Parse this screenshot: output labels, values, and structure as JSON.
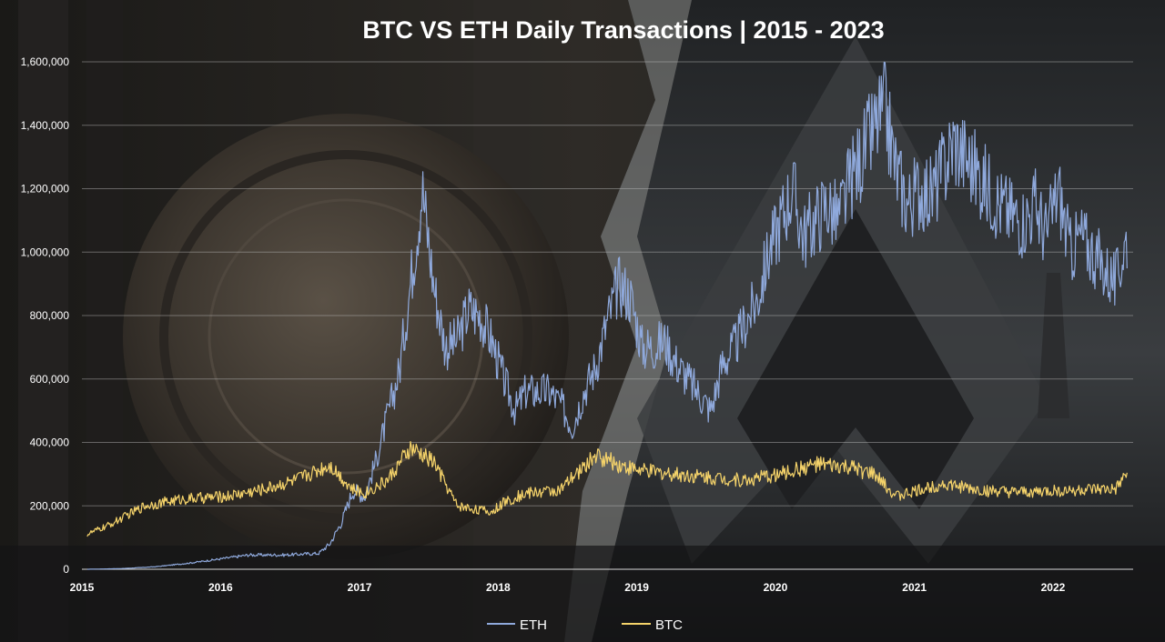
{
  "chart_data": {
    "type": "line",
    "title": "BTC VS ETH Daily Transactions | 2015 - 2023",
    "xlabel": "",
    "ylabel": "",
    "x_tick_labels": [
      "2015",
      "2016",
      "2017",
      "2018",
      "2019",
      "2020",
      "2021",
      "2022"
    ],
    "y_tick_labels": [
      "0",
      "200,000",
      "400,000",
      "600,000",
      "800,000",
      "1,000,000",
      "1,200,000",
      "1,400,000",
      "1,600,000"
    ],
    "xlim": [
      "2015-01-01",
      "2022-07-31"
    ],
    "ylim": [
      0,
      1600000
    ],
    "grid": true,
    "legend_position": "bottom",
    "series": [
      {
        "name": "ETH",
        "color": "#8fa9dc",
        "x": [
          "2015-01",
          "2015-04",
          "2015-07",
          "2015-10",
          "2016-01",
          "2016-03",
          "2016-06",
          "2016-09",
          "2016-10",
          "2016-11",
          "2016-12",
          "2017-01",
          "2017-02",
          "2017-03",
          "2017-04",
          "2017-05",
          "2017-06",
          "2017-07",
          "2017-08",
          "2017-09",
          "2017-10",
          "2017-11",
          "2017-12",
          "2018-01",
          "2018-02",
          "2018-03",
          "2018-04",
          "2018-05",
          "2018-06",
          "2018-07",
          "2018-08",
          "2018-09",
          "2018-10",
          "2018-11",
          "2018-12",
          "2019-01",
          "2019-02",
          "2019-03",
          "2019-04",
          "2019-05",
          "2019-06",
          "2019-07",
          "2019-08",
          "2019-09",
          "2019-10",
          "2019-11",
          "2019-12",
          "2020-01",
          "2020-02",
          "2020-03",
          "2020-04",
          "2020-05",
          "2020-06",
          "2020-07",
          "2020-08",
          "2020-09",
          "2020-10",
          "2020-11",
          "2020-12",
          "2021-01",
          "2021-02",
          "2021-03",
          "2021-04",
          "2021-05",
          "2021-06",
          "2021-07",
          "2021-08",
          "2021-09",
          "2021-10",
          "2021-11",
          "2021-12",
          "2022-01",
          "2022-02",
          "2022-03",
          "2022-04",
          "2022-05",
          "2022-06",
          "2022-07"
        ],
        "values": [
          0,
          2000,
          8000,
          20000,
          35000,
          45000,
          45000,
          50000,
          80000,
          150000,
          250000,
          230000,
          350000,
          480000,
          620000,
          900000,
          1200000,
          900000,
          700000,
          720000,
          820000,
          800000,
          720000,
          600000,
          500000,
          560000,
          560000,
          560000,
          520000,
          450000,
          560000,
          640000,
          780000,
          900000,
          860000,
          700000,
          700000,
          720000,
          650000,
          600000,
          550000,
          500000,
          650000,
          700000,
          780000,
          850000,
          1000000,
          1100000,
          1200000,
          1050000,
          1100000,
          1150000,
          1100000,
          1220000,
          1300000,
          1380000,
          1450000,
          1250000,
          1150000,
          1200000,
          1180000,
          1250000,
          1350000,
          1300000,
          1250000,
          1200000,
          1150000,
          1120000,
          1100000,
          1150000,
          1050000,
          1200000,
          1000000,
          1050000,
          1000000,
          950000,
          900000,
          1050000
        ]
      },
      {
        "name": "BTC",
        "color": "#f5d36a",
        "x": [
          "2015-01",
          "2015-03",
          "2015-06",
          "2015-09",
          "2016-01",
          "2016-04",
          "2016-07",
          "2016-10",
          "2016-12",
          "2017-01",
          "2017-03",
          "2017-05",
          "2017-07",
          "2017-09",
          "2017-12",
          "2018-01",
          "2018-03",
          "2018-06",
          "2018-09",
          "2018-11",
          "2019-01",
          "2019-04",
          "2019-07",
          "2019-10",
          "2020-01",
          "2020-04",
          "2020-07",
          "2020-09",
          "2020-11",
          "2021-01",
          "2021-03",
          "2021-06",
          "2021-09",
          "2021-12",
          "2022-03",
          "2022-06",
          "2022-07"
        ],
        "values": [
          110000,
          140000,
          200000,
          220000,
          230000,
          250000,
          280000,
          330000,
          250000,
          240000,
          280000,
          380000,
          340000,
          200000,
          180000,
          210000,
          240000,
          250000,
          360000,
          330000,
          310000,
          300000,
          290000,
          280000,
          300000,
          330000,
          320000,
          300000,
          230000,
          250000,
          270000,
          250000,
          240000,
          245000,
          250000,
          250000,
          300000
        ]
      }
    ]
  }
}
